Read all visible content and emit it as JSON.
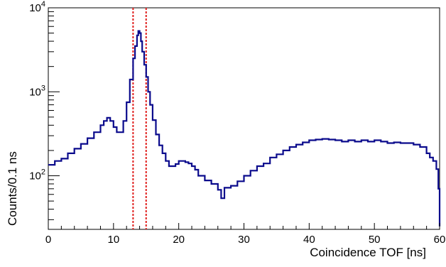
{
  "chart_data": {
    "type": "line",
    "style": "step-histogram",
    "xlabel": "Coincidence TOF [ns]",
    "ylabel": "Counts/0.1 ns",
    "xlim": [
      0,
      60
    ],
    "ylim": [
      23,
      10000
    ],
    "yscale": "log",
    "grid": false,
    "x_ticks": [
      "0",
      "10",
      "20",
      "30",
      "40",
      "50",
      "60"
    ],
    "x_tick_values": [
      0,
      10,
      20,
      30,
      40,
      50,
      60
    ],
    "y_ticks": [
      {
        "value": 100,
        "base": "10",
        "exp": "2"
      },
      {
        "value": 1000,
        "base": "10",
        "exp": "3"
      },
      {
        "value": 10000,
        "base": "10",
        "exp": "4"
      }
    ],
    "cut_lines": [
      13.0,
      15.0
    ],
    "cut_line_color": "#e0201f",
    "series": [
      {
        "color": "#0a0a8c",
        "x": [
          0,
          1,
          2,
          3,
          4,
          5,
          6,
          7,
          8,
          8.5,
          9,
          9.5,
          10,
          10.5,
          11,
          11.5,
          12,
          12.5,
          13,
          13.3,
          13.6,
          13.8,
          14,
          14.2,
          14.4,
          14.7,
          15,
          15.3,
          15.6,
          16,
          16.5,
          17,
          17.5,
          18,
          18.5,
          19,
          19.5,
          20,
          20.5,
          21,
          21.5,
          22,
          22.5,
          23,
          24,
          25,
          26,
          26.5,
          27,
          28,
          29,
          30,
          31,
          32,
          33,
          34,
          35,
          36,
          37,
          38,
          39,
          40,
          41,
          42,
          43,
          44,
          45,
          46,
          47,
          48,
          49,
          50,
          51,
          52,
          53,
          54,
          55,
          56,
          57,
          58,
          58.5,
          59,
          59.5,
          59.8,
          60
        ],
        "y": [
          135,
          150,
          160,
          185,
          210,
          240,
          280,
          330,
          400,
          450,
          490,
          450,
          380,
          330,
          330,
          450,
          750,
          1400,
          2500,
          3500,
          4700,
          5300,
          5000,
          4000,
          3000,
          2100,
          1500,
          1000,
          700,
          460,
          310,
          230,
          185,
          150,
          130,
          130,
          138,
          150,
          150,
          145,
          140,
          130,
          118,
          100,
          88,
          80,
          68,
          54,
          72,
          76,
          86,
          100,
          115,
          130,
          140,
          165,
          180,
          200,
          220,
          235,
          250,
          265,
          270,
          275,
          270,
          265,
          255,
          265,
          255,
          265,
          255,
          265,
          255,
          245,
          250,
          245,
          245,
          235,
          220,
          185,
          165,
          150,
          120,
          70,
          25
        ]
      }
    ]
  }
}
